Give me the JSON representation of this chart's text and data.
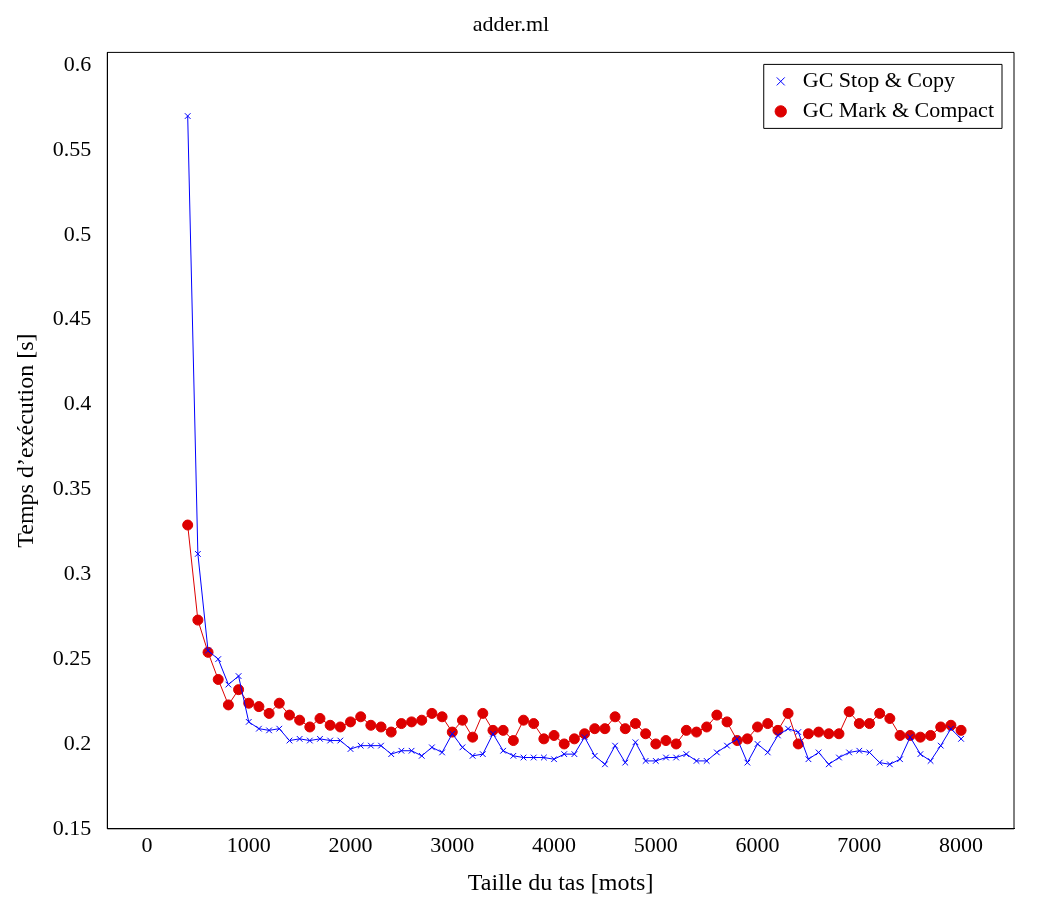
{
  "chart_data": {
    "type": "line",
    "title": "adder.ml",
    "xlabel": "Taille du tas [mots]",
    "ylabel": "Temps d’exécution [s]",
    "x": [
      400,
      500,
      600,
      700,
      800,
      900,
      1000,
      1100,
      1200,
      1300,
      1400,
      1500,
      1600,
      1700,
      1800,
      1900,
      2000,
      2100,
      2200,
      2300,
      2400,
      2500,
      2600,
      2700,
      2800,
      2900,
      3000,
      3100,
      3200,
      3300,
      3400,
      3500,
      3600,
      3700,
      3800,
      3900,
      4000,
      4100,
      4200,
      4300,
      4400,
      4500,
      4600,
      4700,
      4800,
      4900,
      5000,
      5100,
      5200,
      5300,
      5400,
      5500,
      5600,
      5700,
      5800,
      5900,
      6000,
      6100,
      6200,
      6300,
      6400,
      6500,
      6600,
      6700,
      6800,
      6900,
      7000,
      7100,
      7200,
      7300,
      7400,
      7500,
      7600,
      7700,
      7800,
      7900,
      8000
    ],
    "series": [
      {
        "name": "GC Stop & Copy",
        "color": "#0000ff",
        "marker": "cross",
        "values": [
          0.57,
          0.312,
          0.255,
          0.25,
          0.235,
          0.24,
          0.213,
          0.209,
          0.208,
          0.209,
          0.202,
          0.203,
          0.202,
          0.203,
          0.202,
          0.202,
          0.197,
          0.199,
          0.199,
          0.199,
          0.194,
          0.196,
          0.196,
          0.193,
          0.198,
          0.195,
          0.206,
          0.198,
          0.193,
          0.194,
          0.206,
          0.196,
          0.193,
          0.192,
          0.192,
          0.192,
          0.191,
          0.194,
          0.194,
          0.204,
          0.193,
          0.188,
          0.199,
          0.189,
          0.201,
          0.19,
          0.19,
          0.192,
          0.192,
          0.194,
          0.19,
          0.19,
          0.195,
          0.199,
          0.203,
          0.189,
          0.2,
          0.195,
          0.205,
          0.209,
          0.207,
          0.191,
          0.195,
          0.188,
          0.192,
          0.195,
          0.196,
          0.195,
          0.189,
          0.188,
          0.191,
          0.204,
          0.194,
          0.19,
          0.199,
          0.209,
          0.203
        ]
      },
      {
        "name": "GC Mark & Compact",
        "color": "#dd0000",
        "marker": "circle",
        "values": [
          0.329,
          0.273,
          0.254,
          0.238,
          0.223,
          0.232,
          0.224,
          0.222,
          0.218,
          0.224,
          0.217,
          0.214,
          0.21,
          0.215,
          0.211,
          0.21,
          0.213,
          0.216,
          0.211,
          0.21,
          0.207,
          0.212,
          0.213,
          0.214,
          0.218,
          0.216,
          0.207,
          0.214,
          0.204,
          0.218,
          0.208,
          0.208,
          0.202,
          0.214,
          0.212,
          0.203,
          0.205,
          0.2,
          0.203,
          0.206,
          0.209,
          0.209,
          0.216,
          0.209,
          0.212,
          0.206,
          0.2,
          0.202,
          0.2,
          0.208,
          0.207,
          0.21,
          0.217,
          0.213,
          0.202,
          0.203,
          0.21,
          0.212,
          0.208,
          0.218,
          0.2,
          0.206,
          0.207,
          0.206,
          0.206,
          0.219,
          0.212,
          0.212,
          0.218,
          0.215,
          0.205,
          0.205,
          0.204,
          0.205,
          0.21,
          0.211,
          0.208
        ]
      }
    ],
    "xlim": [
      -390,
      8520
    ],
    "xticks": [
      0,
      1000,
      2000,
      3000,
      4000,
      5000,
      6000,
      7000,
      8000
    ],
    "ylim": [
      0.15,
      0.6075
    ],
    "yticks": [
      0.15,
      0.2,
      0.25,
      0.3,
      0.35,
      0.4,
      0.45,
      0.5,
      0.55,
      0.6
    ],
    "grid": false,
    "legend": "top right",
    "line_style": "solid"
  }
}
